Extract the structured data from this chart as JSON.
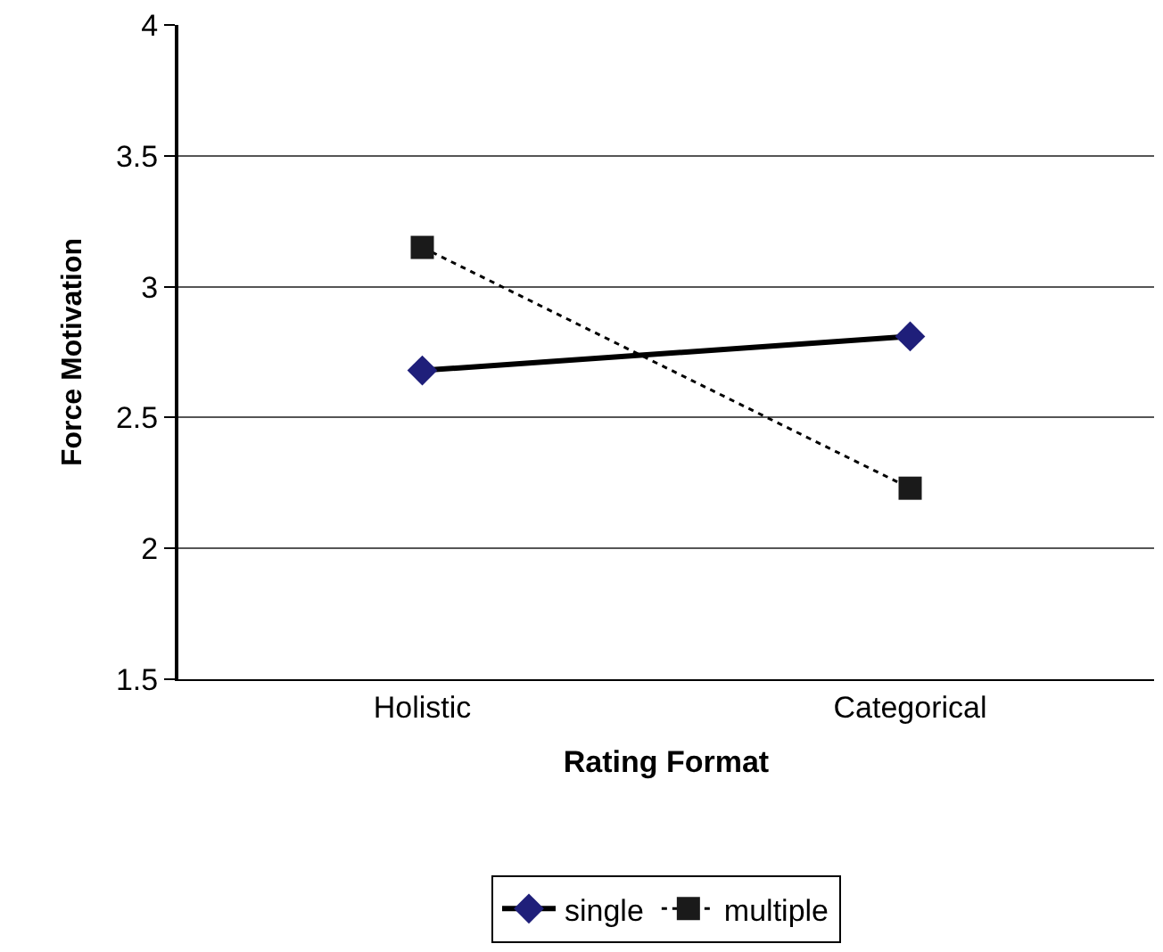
{
  "chart_data": {
    "type": "line",
    "xlabel": "Rating Format",
    "ylabel": "Force Motivation",
    "categories": [
      "Holistic",
      "Categorical"
    ],
    "series": [
      {
        "name": "single",
        "color": "#1f1f7a",
        "values": [
          2.68,
          2.81
        ],
        "marker": "diamond",
        "line_style": "solid"
      },
      {
        "name": "multiple",
        "color": "#1a1a1a",
        "values": [
          3.15,
          2.23
        ],
        "marker": "square",
        "line_style": "dotted"
      }
    ],
    "ylim": [
      1.5,
      4
    ],
    "yticks": [
      1.5,
      2,
      2.5,
      3,
      3.5,
      4
    ],
    "grid": "y",
    "legend": "bottom"
  }
}
